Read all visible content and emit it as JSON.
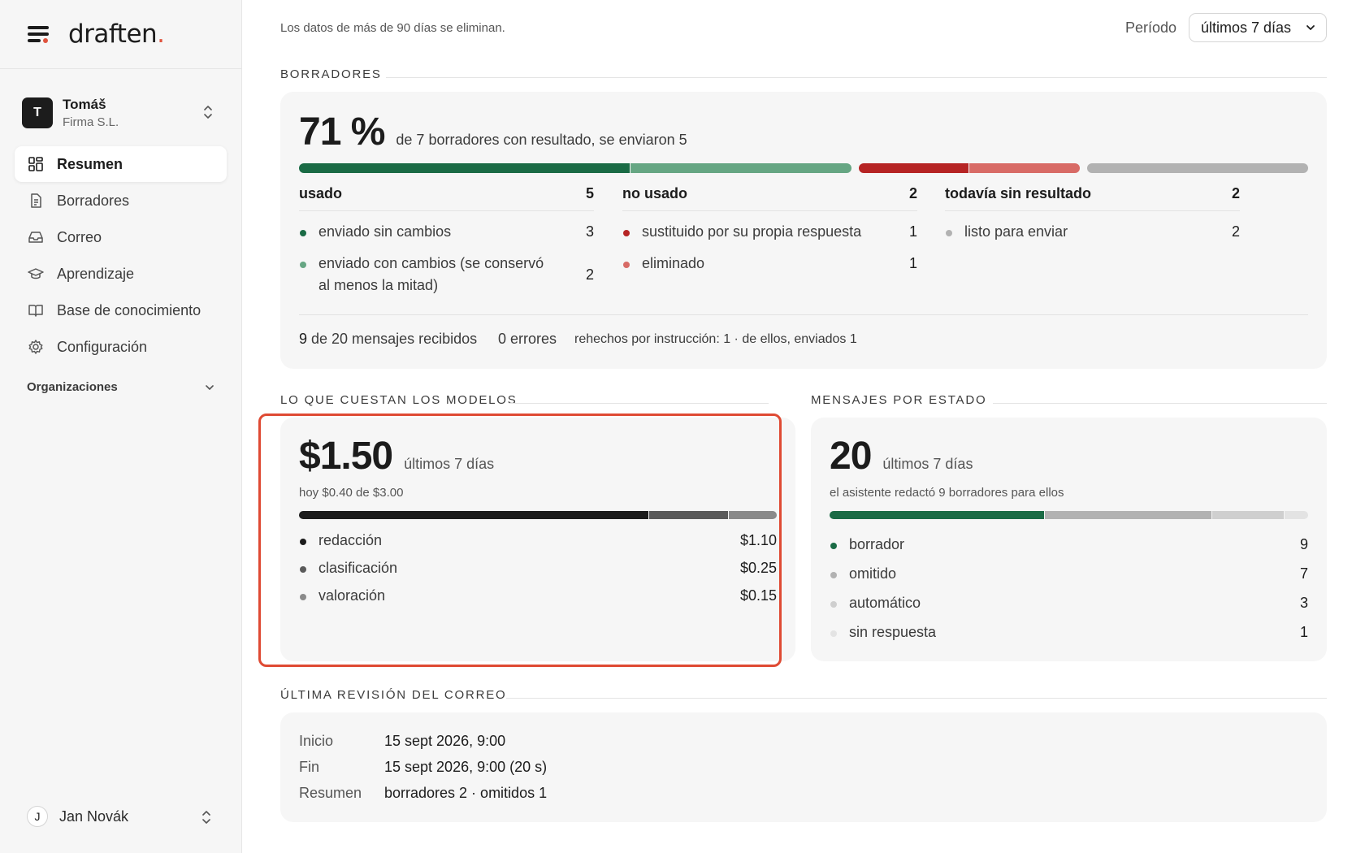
{
  "brand": {
    "name": "draften",
    "dot": "."
  },
  "org": {
    "initial": "T",
    "name": "Tomáš",
    "company": "Firma S.L."
  },
  "nav": [
    {
      "label": "Resumen",
      "icon": "dashboard-icon"
    },
    {
      "label": "Borradores",
      "icon": "document-icon"
    },
    {
      "label": "Correo",
      "icon": "inbox-icon"
    },
    {
      "label": "Aprendizaje",
      "icon": "graduation-cap-icon"
    },
    {
      "label": "Base de conocimiento",
      "icon": "book-icon"
    },
    {
      "label": "Configuración",
      "icon": "gear-icon"
    }
  ],
  "organizations_label": "Organizaciones",
  "user": {
    "initial": "J",
    "name": "Jan Novák"
  },
  "top": {
    "note": "Los datos de más de 90 días se eliminan.",
    "period_label": "Período",
    "period_value": "últimos 7 días"
  },
  "drafts": {
    "section": "BORRADORES",
    "percent": "71 %",
    "summary": "de 7 borradores con resultado, se enviaron 5",
    "bar": [
      {
        "value": 3,
        "color": "#1a6b45"
      },
      {
        "value": 2,
        "color": "#66a683"
      },
      {
        "value": 1,
        "color": "#b62424"
      },
      {
        "value": 1,
        "color": "#d86b66"
      },
      {
        "value": 2,
        "color": "#b2b2b2"
      }
    ],
    "columns": [
      {
        "title": "usado",
        "count": "5",
        "rows": [
          {
            "label": "enviado sin cambios",
            "count": "3",
            "color": "#1a6b45"
          },
          {
            "label": "enviado con cambios (se conservó al menos la mitad)",
            "count": "2",
            "color": "#66a683"
          }
        ]
      },
      {
        "title": "no usado",
        "count": "2",
        "rows": [
          {
            "label": "sustituido por su propia respuesta",
            "count": "1",
            "color": "#b62424"
          },
          {
            "label": "eliminado",
            "count": "1",
            "color": "#d86b66"
          }
        ]
      },
      {
        "title": "todavía sin resultado",
        "count": "2",
        "rows": [
          {
            "label": "listo para enviar",
            "count": "2",
            "color": "#b2b2b2"
          }
        ]
      }
    ],
    "footer": {
      "received_num": "9",
      "received_text": " de 20 mensajes recibidos",
      "errors": "0 errores",
      "redone": "rehechos por instrucción: 1 · de ellos, enviados 1"
    }
  },
  "costs": {
    "section": "LO QUE CUESTAN LOS MODELOS",
    "total": "$1.50",
    "period": "últimos 7 días",
    "today": "hoy $0.40 de $3.00",
    "items": [
      {
        "label": "redacción",
        "value": "$1.10",
        "amount": 1.1,
        "color": "#1c1c1c"
      },
      {
        "label": "clasificación",
        "value": "$0.25",
        "amount": 0.25,
        "color": "#5a5a5a"
      },
      {
        "label": "valoración",
        "value": "$0.15",
        "amount": 0.15,
        "color": "#8a8a8a"
      }
    ]
  },
  "messages": {
    "section": "MENSAJES POR ESTADO",
    "total": "20",
    "period": "últimos 7 días",
    "note": "el asistente redactó 9 borradores para ellos",
    "items": [
      {
        "label": "borrador",
        "count": "9",
        "value": 9,
        "color": "#1a6b45"
      },
      {
        "label": "omitido",
        "count": "7",
        "value": 7,
        "color": "#b2b2b2"
      },
      {
        "label": "automático",
        "count": "3",
        "value": 3,
        "color": "#cfcfcf"
      },
      {
        "label": "sin respuesta",
        "count": "1",
        "value": 1,
        "color": "#e3e3e3"
      }
    ]
  },
  "review": {
    "section": "ÚLTIMA REVISIÓN DEL CORREO",
    "rows": [
      {
        "key": "Inicio",
        "value": "15 sept 2026, 9:00"
      },
      {
        "key": "Fin",
        "value": "15 sept 2026, 9:00 (20 s)"
      },
      {
        "key": "Resumen",
        "value": "borradores 2 · omitidos 1"
      }
    ]
  }
}
